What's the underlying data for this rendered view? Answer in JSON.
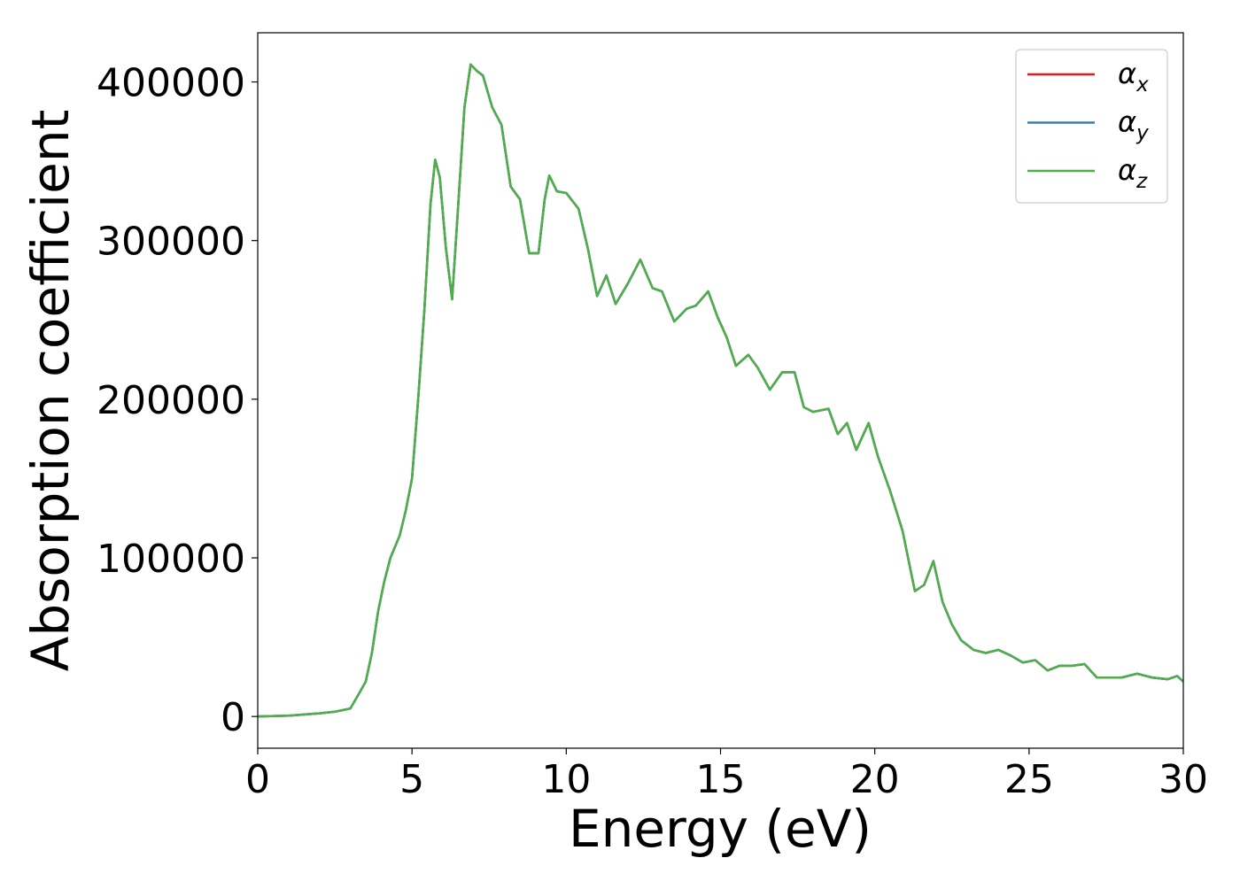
{
  "chart_data": {
    "type": "line",
    "xlabel": "Energy (eV)",
    "ylabel": "Absorption coefficient",
    "x": [
      0,
      1,
      2,
      2.5,
      3.0,
      3.3,
      3.5,
      3.7,
      3.9,
      4.1,
      4.3,
      4.6,
      4.8,
      5.0,
      5.2,
      5.4,
      5.6,
      5.75,
      5.9,
      6.1,
      6.3,
      6.5,
      6.7,
      6.9,
      7.1,
      7.3,
      7.6,
      7.9,
      8.2,
      8.5,
      8.8,
      9.1,
      9.3,
      9.45,
      9.7,
      10.0,
      10.4,
      10.7,
      11.0,
      11.3,
      11.6,
      12.0,
      12.4,
      12.8,
      13.1,
      13.5,
      13.9,
      14.2,
      14.6,
      14.9,
      15.2,
      15.5,
      15.9,
      16.2,
      16.6,
      17.0,
      17.4,
      17.7,
      18.0,
      18.5,
      18.8,
      19.1,
      19.4,
      19.8,
      20.1,
      20.5,
      20.9,
      21.3,
      21.6,
      21.9,
      22.2,
      22.5,
      22.8,
      23.2,
      23.6,
      24.0,
      24.4,
      24.8,
      25.2,
      25.6,
      26.0,
      26.4,
      26.8,
      27.2,
      27.6,
      28.0,
      28.5,
      29.0,
      29.5,
      29.8,
      30.0
    ],
    "series": [
      {
        "name": "αx",
        "color": "#e41a1c",
        "values": [
          0,
          500,
          2000,
          3000,
          5000,
          15000,
          22000,
          40000,
          66000,
          85000,
          100000,
          114000,
          130000,
          150000,
          200000,
          256000,
          323000,
          351000,
          340000,
          295000,
          263000,
          323000,
          384000,
          411000,
          407000,
          404000,
          384000,
          373000,
          334000,
          326000,
          292000,
          292000,
          326000,
          341000,
          331000,
          330000,
          320000,
          295000,
          265000,
          278000,
          260000,
          273000,
          288000,
          270000,
          268000,
          249000,
          257000,
          259000,
          268000,
          252000,
          239000,
          221000,
          228000,
          220000,
          206000,
          217000,
          217000,
          195000,
          192000,
          194000,
          178000,
          185000,
          168000,
          185000,
          164000,
          142000,
          117000,
          79000,
          83000,
          98000,
          72000,
          58000,
          48000,
          42000,
          40000,
          42000,
          38500,
          34000,
          35500,
          29000,
          32000,
          32000,
          33000,
          24500,
          24500,
          24500,
          27000,
          24500,
          23500,
          25500,
          22000
        ]
      },
      {
        "name": "αy",
        "color": "#377eb8",
        "values": [
          0,
          500,
          2000,
          3000,
          5000,
          15000,
          22000,
          40000,
          66000,
          85000,
          100000,
          114000,
          130000,
          150000,
          200000,
          256000,
          323000,
          351000,
          340000,
          295000,
          263000,
          323000,
          384000,
          411000,
          407000,
          404000,
          384000,
          373000,
          334000,
          326000,
          292000,
          292000,
          326000,
          341000,
          331000,
          330000,
          320000,
          295000,
          265000,
          278000,
          260000,
          273000,
          288000,
          270000,
          268000,
          249000,
          257000,
          259000,
          268000,
          252000,
          239000,
          221000,
          228000,
          220000,
          206000,
          217000,
          217000,
          195000,
          192000,
          194000,
          178000,
          185000,
          168000,
          185000,
          164000,
          142000,
          117000,
          79000,
          83000,
          98000,
          72000,
          58000,
          48000,
          42000,
          40000,
          42000,
          38500,
          34000,
          35500,
          29000,
          32000,
          32000,
          33000,
          24500,
          24500,
          24500,
          27000,
          24500,
          23500,
          25500,
          22000
        ]
      },
      {
        "name": "αz",
        "color": "#4daf4a",
        "values": [
          0,
          500,
          2000,
          3000,
          5000,
          15000,
          22000,
          40000,
          66000,
          85000,
          100000,
          114000,
          130000,
          150000,
          200000,
          256000,
          323000,
          351000,
          340000,
          295000,
          263000,
          323000,
          384000,
          411000,
          407000,
          404000,
          384000,
          373000,
          334000,
          326000,
          292000,
          292000,
          326000,
          341000,
          331000,
          330000,
          320000,
          295000,
          265000,
          278000,
          260000,
          273000,
          288000,
          270000,
          268000,
          249000,
          257000,
          259000,
          268000,
          252000,
          239000,
          221000,
          228000,
          220000,
          206000,
          217000,
          217000,
          195000,
          192000,
          194000,
          178000,
          185000,
          168000,
          185000,
          164000,
          142000,
          117000,
          79000,
          83000,
          98000,
          72000,
          58000,
          48000,
          42000,
          40000,
          42000,
          38500,
          34000,
          35500,
          29000,
          32000,
          32000,
          33000,
          24500,
          24500,
          24500,
          27000,
          24500,
          23500,
          25500,
          22000
        ]
      }
    ],
    "xlim": [
      0,
      30
    ],
    "xticks": [
      0,
      5,
      10,
      15,
      20,
      25,
      30
    ],
    "ylim": [
      -20000,
      431000
    ],
    "yticks": [
      0,
      100000,
      200000,
      300000,
      400000
    ],
    "grid": false,
    "legend": "upper right"
  }
}
